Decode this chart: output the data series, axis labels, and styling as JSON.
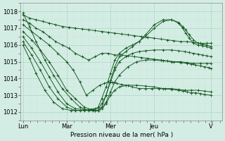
{
  "xlabel": "Pression niveau de la mer( hPa )",
  "bg_color": "#d4ede4",
  "grid_major_color": "#b8d8cc",
  "grid_minor_color": "#c8e4da",
  "line_color": "#1a5c28",
  "marker": "+",
  "markersize": 3,
  "linewidth": 0.7,
  "ylim": [
    1011.5,
    1018.5
  ],
  "yticks": [
    1012,
    1013,
    1014,
    1015,
    1016,
    1017,
    1018
  ],
  "xlim": [
    -0.05,
    4.55
  ],
  "xtick_positions": [
    0.0,
    1.0,
    2.0,
    3.0,
    4.3
  ],
  "xtick_labels": [
    "Lun",
    "Mar",
    "Mer",
    "Jeu",
    "V"
  ],
  "total_x": 4.3,
  "series": [
    {
      "x": [
        0.0,
        0.15,
        0.3,
        0.45,
        0.6,
        0.75,
        0.9,
        1.05,
        1.2,
        1.35,
        1.5,
        1.65,
        1.8,
        1.95,
        2.1,
        2.25,
        2.4,
        2.55,
        2.7,
        2.85,
        3.0,
        3.15,
        3.3,
        3.45,
        3.6,
        3.75,
        3.9,
        4.05,
        4.2,
        4.3
      ],
      "y": [
        1017.8,
        1017.6,
        1017.5,
        1017.4,
        1017.3,
        1017.2,
        1017.1,
        1017.05,
        1017.0,
        1016.95,
        1016.9,
        1016.85,
        1016.8,
        1016.75,
        1016.7,
        1016.65,
        1016.6,
        1016.55,
        1016.5,
        1016.45,
        1016.4,
        1016.35,
        1016.3,
        1016.25,
        1016.2,
        1016.2,
        1016.15,
        1016.1,
        1016.1,
        1016.1
      ]
    },
    {
      "x": [
        0.0,
        0.15,
        0.3,
        0.45,
        0.6,
        0.75,
        0.9,
        1.05,
        1.2,
        1.35,
        1.5,
        1.65,
        1.8,
        1.95,
        2.1,
        2.25,
        2.4,
        2.55,
        2.7,
        2.85,
        3.0,
        3.15,
        3.3,
        3.45,
        3.6,
        3.75,
        3.9,
        4.05,
        4.2,
        4.3
      ],
      "y": [
        1017.5,
        1017.3,
        1017.0,
        1016.8,
        1016.5,
        1016.2,
        1016.0,
        1015.8,
        1015.5,
        1015.3,
        1015.1,
        1015.3,
        1015.5,
        1015.5,
        1015.4,
        1015.4,
        1015.35,
        1015.3,
        1015.25,
        1015.2,
        1015.15,
        1015.1,
        1015.05,
        1015.0,
        1015.0,
        1014.95,
        1014.9,
        1014.9,
        1014.9,
        1014.9
      ]
    },
    {
      "x": [
        0.0,
        0.2,
        0.4,
        0.6,
        0.8,
        1.0,
        1.15,
        1.3,
        1.45,
        1.6,
        1.75,
        1.85,
        1.95,
        2.05,
        2.15,
        2.25,
        2.35,
        2.5,
        2.65,
        2.8,
        2.95,
        3.1,
        3.25,
        3.4,
        3.55,
        3.7,
        3.85,
        4.0,
        4.15,
        4.3
      ],
      "y": [
        1017.2,
        1016.8,
        1016.4,
        1016.0,
        1015.5,
        1015.0,
        1014.5,
        1013.8,
        1013.0,
        1013.3,
        1013.6,
        1013.7,
        1013.8,
        1013.75,
        1013.7,
        1013.65,
        1013.6,
        1013.5,
        1013.4,
        1013.4,
        1013.4,
        1013.4,
        1013.4,
        1013.4,
        1013.35,
        1013.3,
        1013.3,
        1013.3,
        1013.25,
        1013.2
      ]
    },
    {
      "x": [
        0.0,
        0.2,
        0.4,
        0.6,
        0.8,
        1.0,
        1.2,
        1.4,
        1.55,
        1.65,
        1.72,
        1.8,
        1.9,
        2.0,
        2.1,
        2.2,
        2.4,
        2.6,
        2.8,
        3.0,
        3.2,
        3.4,
        3.55,
        3.65,
        3.75,
        3.85,
        3.95,
        4.05,
        4.15,
        4.3
      ],
      "y": [
        1016.8,
        1016.3,
        1015.7,
        1015.0,
        1014.2,
        1013.3,
        1012.8,
        1012.3,
        1012.15,
        1012.1,
        1012.1,
        1012.2,
        1012.5,
        1013.0,
        1013.3,
        1013.5,
        1013.6,
        1013.6,
        1013.55,
        1013.5,
        1013.4,
        1013.35,
        1013.3,
        1013.25,
        1013.2,
        1013.15,
        1013.15,
        1013.1,
        1013.05,
        1013.0
      ]
    },
    {
      "x": [
        0.0,
        0.2,
        0.4,
        0.6,
        0.8,
        1.0,
        1.2,
        1.4,
        1.6,
        1.72,
        1.8,
        1.9,
        2.0,
        2.1,
        2.2,
        2.4,
        2.6,
        2.8,
        3.0,
        3.2,
        3.4,
        3.6,
        3.75,
        3.85,
        3.95,
        4.05,
        4.15,
        4.25,
        4.3
      ],
      "y": [
        1016.5,
        1015.8,
        1015.0,
        1014.1,
        1013.2,
        1012.5,
        1012.2,
        1012.15,
        1012.1,
        1012.1,
        1012.2,
        1012.6,
        1013.2,
        1013.8,
        1014.2,
        1014.7,
        1015.0,
        1015.1,
        1015.1,
        1015.05,
        1015.0,
        1014.95,
        1014.9,
        1014.85,
        1014.8,
        1014.75,
        1014.7,
        1014.65,
        1014.6
      ]
    },
    {
      "x": [
        0.0,
        0.2,
        0.4,
        0.6,
        0.8,
        1.0,
        1.2,
        1.4,
        1.6,
        1.72,
        1.8,
        1.9,
        2.0,
        2.1,
        2.2,
        2.35,
        2.5,
        2.65,
        2.8,
        3.0,
        3.2,
        3.4,
        3.55,
        3.7,
        3.8,
        3.9,
        4.0,
        4.1,
        4.2,
        4.3
      ],
      "y": [
        1016.2,
        1015.4,
        1014.5,
        1013.5,
        1012.8,
        1012.3,
        1012.1,
        1012.1,
        1012.15,
        1012.2,
        1012.5,
        1013.0,
        1013.8,
        1014.5,
        1015.0,
        1015.3,
        1015.5,
        1015.6,
        1015.65,
        1015.7,
        1015.7,
        1015.7,
        1015.65,
        1015.6,
        1015.55,
        1015.5,
        1015.45,
        1015.4,
        1015.35,
        1015.3
      ]
    },
    {
      "x": [
        0.0,
        0.15,
        0.3,
        0.5,
        0.7,
        0.9,
        1.1,
        1.3,
        1.5,
        1.65,
        1.72,
        1.8,
        1.9,
        2.0,
        2.1,
        2.2,
        2.35,
        2.5,
        2.65,
        2.8,
        3.0,
        3.2,
        3.4,
        3.55,
        3.65,
        3.72,
        3.8,
        3.9,
        4.0,
        4.1,
        4.2,
        4.3
      ],
      "y": [
        1016.0,
        1015.2,
        1014.3,
        1013.3,
        1012.6,
        1012.2,
        1012.1,
        1012.1,
        1012.15,
        1012.2,
        1012.3,
        1012.8,
        1013.5,
        1014.3,
        1015.1,
        1015.5,
        1015.8,
        1016.0,
        1016.2,
        1016.5,
        1017.0,
        1017.4,
        1017.5,
        1017.35,
        1017.1,
        1016.9,
        1016.6,
        1016.3,
        1016.1,
        1016.05,
        1016.0,
        1015.9
      ]
    },
    {
      "x": [
        0.0,
        0.15,
        0.3,
        0.5,
        0.7,
        0.9,
        1.1,
        1.3,
        1.5,
        1.65,
        1.72,
        1.8,
        1.9,
        2.0,
        2.1,
        2.2,
        2.35,
        2.5,
        2.65,
        2.8,
        3.0,
        3.2,
        3.4,
        3.55,
        3.65,
        3.72,
        3.8,
        3.9,
        4.0,
        4.1,
        4.2,
        4.3
      ],
      "y": [
        1017.9,
        1017.1,
        1016.2,
        1015.1,
        1014.2,
        1013.4,
        1012.8,
        1012.3,
        1012.1,
        1012.1,
        1012.1,
        1012.3,
        1013.0,
        1013.9,
        1014.7,
        1015.3,
        1015.6,
        1015.9,
        1016.2,
        1016.6,
        1017.2,
        1017.5,
        1017.5,
        1017.3,
        1017.0,
        1016.7,
        1016.4,
        1016.1,
        1016.0,
        1015.95,
        1015.9,
        1015.8
      ]
    }
  ]
}
